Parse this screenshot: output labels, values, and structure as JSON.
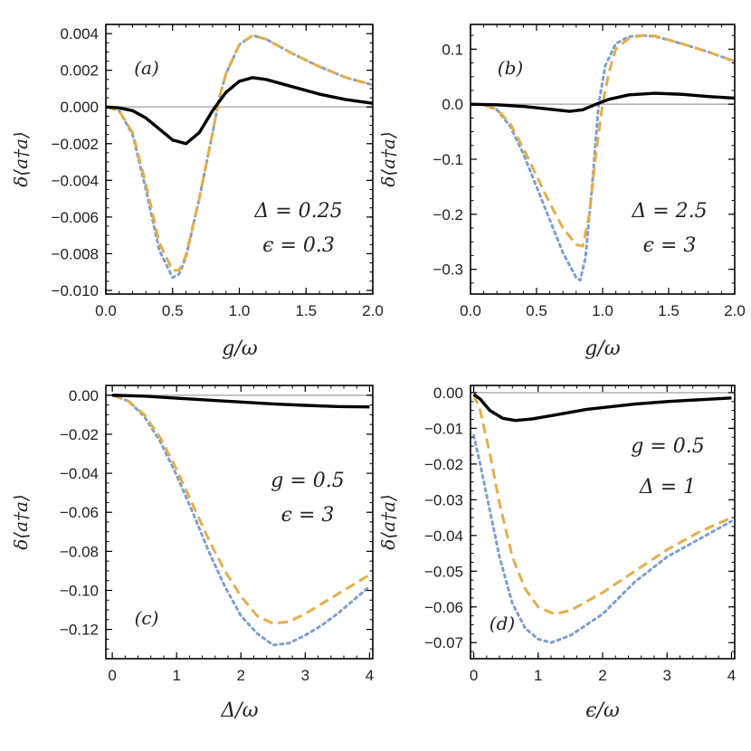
{
  "chart_data": [
    {
      "id": "a",
      "type": "line",
      "panel_label": "(a)",
      "xlabel": "g/ω",
      "ylabel": "δ⟨a†a⟩",
      "xlim": [
        0,
        2
      ],
      "ylim": [
        -0.0102,
        0.0045
      ],
      "xticks": [
        0,
        0.5,
        1,
        1.5,
        2
      ],
      "xticklabels": [
        "0.0",
        "0.5",
        "1.0",
        "1.5",
        "2.0"
      ],
      "yticks": [
        0.004,
        0.002,
        0,
        -0.002,
        -0.004,
        -0.006,
        -0.008,
        -0.01
      ],
      "yticklabels": [
        "0.004",
        "0.002",
        "0.000",
        "−0.002",
        "−0.004",
        "−0.006",
        "−0.008",
        "−0.010"
      ],
      "params": [
        "Δ = 0.25",
        "ϵ = 0.3"
      ],
      "params_pos": "middle-right",
      "reference_line": 0,
      "series": [
        {
          "style": "dotted",
          "color": "#7e9fce",
          "points": [
            [
              0,
              0
            ],
            [
              0.1,
              -0.0002
            ],
            [
              0.2,
              -0.0015
            ],
            [
              0.3,
              -0.0045
            ],
            [
              0.4,
              -0.0078
            ],
            [
              0.5,
              -0.0093
            ],
            [
              0.55,
              -0.0091
            ],
            [
              0.6,
              -0.0082
            ],
            [
              0.7,
              -0.005
            ],
            [
              0.8,
              -0.0014
            ],
            [
              0.85,
              0.0005
            ],
            [
              0.9,
              0.0018
            ],
            [
              1.0,
              0.0034
            ],
            [
              1.1,
              0.0039
            ],
            [
              1.2,
              0.0037
            ],
            [
              1.4,
              0.0029
            ],
            [
              1.6,
              0.0022
            ],
            [
              1.8,
              0.0016
            ],
            [
              2.0,
              0.0012
            ]
          ]
        },
        {
          "style": "dashed",
          "color": "#e2ae4c",
          "points": [
            [
              0,
              0
            ],
            [
              0.1,
              -0.0002
            ],
            [
              0.2,
              -0.0014
            ],
            [
              0.3,
              -0.0042
            ],
            [
              0.4,
              -0.0074
            ],
            [
              0.5,
              -0.0089
            ],
            [
              0.55,
              -0.0089
            ],
            [
              0.6,
              -0.0081
            ],
            [
              0.7,
              -0.005
            ],
            [
              0.8,
              -0.0014
            ],
            [
              0.85,
              0.0005
            ],
            [
              0.9,
              0.0018
            ],
            [
              1.0,
              0.0034
            ],
            [
              1.1,
              0.0039
            ],
            [
              1.2,
              0.0037
            ],
            [
              1.4,
              0.0029
            ],
            [
              1.6,
              0.0022
            ],
            [
              1.8,
              0.0016
            ],
            [
              2.0,
              0.0012
            ]
          ]
        },
        {
          "style": "solid",
          "color": "#000000",
          "points": [
            [
              0,
              0
            ],
            [
              0.1,
              -5e-05
            ],
            [
              0.2,
              -0.0002
            ],
            [
              0.3,
              -0.0006
            ],
            [
              0.4,
              -0.0012
            ],
            [
              0.5,
              -0.0018
            ],
            [
              0.6,
              -0.002
            ],
            [
              0.7,
              -0.0014
            ],
            [
              0.8,
              -0.0002
            ],
            [
              0.9,
              0.0008
            ],
            [
              1.0,
              0.0014
            ],
            [
              1.1,
              0.0016
            ],
            [
              1.2,
              0.0015
            ],
            [
              1.4,
              0.0011
            ],
            [
              1.6,
              0.0007
            ],
            [
              1.8,
              0.0004
            ],
            [
              2.0,
              0.0002
            ]
          ]
        }
      ]
    },
    {
      "id": "b",
      "type": "line",
      "panel_label": "(b)",
      "xlabel": "g/ω",
      "ylabel": "δ⟨a†a⟩",
      "xlim": [
        0,
        2
      ],
      "ylim": [
        -0.345,
        0.145
      ],
      "xticks": [
        0,
        0.5,
        1,
        1.5,
        2
      ],
      "xticklabels": [
        "0.0",
        "0.5",
        "1.0",
        "1.5",
        "2.0"
      ],
      "yticks": [
        0.1,
        0,
        -0.1,
        -0.2,
        -0.3
      ],
      "yticklabels": [
        "0.1",
        "0.0",
        "−0.1",
        "−0.2",
        "−0.3"
      ],
      "params": [
        "Δ = 2.5",
        "ϵ = 3"
      ],
      "params_pos": "middle-right",
      "reference_line": 0,
      "series": [
        {
          "style": "dotted",
          "color": "#7e9fce",
          "points": [
            [
              0,
              0
            ],
            [
              0.1,
              -0.001
            ],
            [
              0.2,
              -0.01
            ],
            [
              0.3,
              -0.04
            ],
            [
              0.4,
              -0.09
            ],
            [
              0.5,
              -0.15
            ],
            [
              0.6,
              -0.21
            ],
            [
              0.7,
              -0.27
            ],
            [
              0.8,
              -0.315
            ],
            [
              0.83,
              -0.32
            ],
            [
              0.87,
              -0.28
            ],
            [
              0.92,
              -0.15
            ],
            [
              0.97,
              0.0
            ],
            [
              1.02,
              0.07
            ],
            [
              1.1,
              0.11
            ],
            [
              1.2,
              0.123
            ],
            [
              1.3,
              0.125
            ],
            [
              1.4,
              0.123
            ],
            [
              1.6,
              0.11
            ],
            [
              1.8,
              0.095
            ],
            [
              2.0,
              0.078
            ]
          ]
        },
        {
          "style": "dashed",
          "color": "#e2ae4c",
          "points": [
            [
              0,
              0
            ],
            [
              0.1,
              -0.001
            ],
            [
              0.2,
              -0.009
            ],
            [
              0.3,
              -0.035
            ],
            [
              0.4,
              -0.08
            ],
            [
              0.5,
              -0.13
            ],
            [
              0.6,
              -0.18
            ],
            [
              0.7,
              -0.225
            ],
            [
              0.8,
              -0.255
            ],
            [
              0.85,
              -0.258
            ],
            [
              0.9,
              -0.2
            ],
            [
              0.95,
              -0.09
            ],
            [
              1.0,
              0.0
            ],
            [
              1.05,
              0.06
            ],
            [
              1.1,
              0.1
            ],
            [
              1.2,
              0.12
            ],
            [
              1.3,
              0.125
            ],
            [
              1.4,
              0.124
            ],
            [
              1.6,
              0.11
            ],
            [
              1.8,
              0.095
            ],
            [
              2.0,
              0.078
            ]
          ]
        },
        {
          "style": "solid",
          "color": "#000000",
          "points": [
            [
              0,
              0
            ],
            [
              0.2,
              -0.001
            ],
            [
              0.4,
              -0.004
            ],
            [
              0.6,
              -0.009
            ],
            [
              0.75,
              -0.013
            ],
            [
              0.85,
              -0.01
            ],
            [
              0.95,
              0.0
            ],
            [
              1.05,
              0.009
            ],
            [
              1.2,
              0.017
            ],
            [
              1.4,
              0.02
            ],
            [
              1.6,
              0.018
            ],
            [
              1.8,
              0.014
            ],
            [
              2.0,
              0.011
            ]
          ]
        }
      ]
    },
    {
      "id": "c",
      "type": "line",
      "panel_label": "(c)",
      "xlabel": "Δ/ω",
      "ylabel": "δ⟨a†a⟩",
      "xlim": [
        -0.1,
        4.05
      ],
      "ylim": [
        -0.135,
        0.005
      ],
      "xticks": [
        0,
        1,
        2,
        3,
        4
      ],
      "xticklabels": [
        "0",
        "1",
        "2",
        "3",
        "4"
      ],
      "yticks": [
        0,
        -0.02,
        -0.04,
        -0.06,
        -0.08,
        -0.1,
        -0.12
      ],
      "yticklabels": [
        "0.00",
        "−0.02",
        "−0.04",
        "−0.06",
        "−0.08",
        "−0.10",
        "−0.12"
      ],
      "params": [
        "g = 0.5",
        "ϵ = 3"
      ],
      "params_pos": "middle-right",
      "reference_line": 0,
      "series": [
        {
          "style": "dotted",
          "color": "#7e9fce",
          "points": [
            [
              0,
              0
            ],
            [
              0.25,
              -0.003
            ],
            [
              0.5,
              -0.011
            ],
            [
              0.75,
              -0.024
            ],
            [
              1.0,
              -0.041
            ],
            [
              1.25,
              -0.06
            ],
            [
              1.5,
              -0.08
            ],
            [
              1.75,
              -0.098
            ],
            [
              2.0,
              -0.113
            ],
            [
              2.25,
              -0.122
            ],
            [
              2.5,
              -0.128
            ],
            [
              2.75,
              -0.127
            ],
            [
              3.0,
              -0.123
            ],
            [
              3.25,
              -0.118
            ],
            [
              3.5,
              -0.112
            ],
            [
              3.75,
              -0.105
            ],
            [
              4.0,
              -0.098
            ]
          ]
        },
        {
          "style": "dashed",
          "color": "#e2ae4c",
          "points": [
            [
              0,
              0
            ],
            [
              0.25,
              -0.003
            ],
            [
              0.5,
              -0.01
            ],
            [
              0.75,
              -0.022
            ],
            [
              1.0,
              -0.038
            ],
            [
              1.25,
              -0.056
            ],
            [
              1.5,
              -0.074
            ],
            [
              1.75,
              -0.09
            ],
            [
              2.0,
              -0.103
            ],
            [
              2.25,
              -0.113
            ],
            [
              2.5,
              -0.117
            ],
            [
              2.75,
              -0.116
            ],
            [
              3.0,
              -0.112
            ],
            [
              3.25,
              -0.107
            ],
            [
              3.5,
              -0.102
            ],
            [
              3.75,
              -0.097
            ],
            [
              4.0,
              -0.092
            ]
          ]
        },
        {
          "style": "solid",
          "color": "#000000",
          "points": [
            [
              0,
              0
            ],
            [
              0.5,
              -0.0005
            ],
            [
              1.0,
              -0.0015
            ],
            [
              1.5,
              -0.0025
            ],
            [
              2.0,
              -0.0035
            ],
            [
              2.5,
              -0.0045
            ],
            [
              3.0,
              -0.0052
            ],
            [
              3.5,
              -0.0058
            ],
            [
              4.0,
              -0.006
            ]
          ]
        }
      ]
    },
    {
      "id": "d",
      "type": "line",
      "panel_label": "(d)",
      "xlabel": "ϵ/ω",
      "ylabel": "δ⟨a†a⟩",
      "xlim": [
        -0.05,
        4.05
      ],
      "ylim": [
        -0.0745,
        0.002
      ],
      "xticks": [
        0,
        1,
        2,
        3,
        4
      ],
      "xticklabels": [
        "0",
        "1",
        "2",
        "3",
        "4"
      ],
      "yticks": [
        0,
        -0.01,
        -0.02,
        -0.03,
        -0.04,
        -0.05,
        -0.06,
        -0.07
      ],
      "yticklabels": [
        "0.00",
        "−0.01",
        "−0.02",
        "−0.03",
        "−0.04",
        "−0.05",
        "−0.06",
        "−0.07"
      ],
      "params": [
        "g = 0.5",
        "Δ = 1"
      ],
      "params_pos": "upper-right",
      "reference_line": 0,
      "series": [
        {
          "style": "dotted",
          "color": "#7e9fce",
          "points": [
            [
              0,
              -0.012
            ],
            [
              0.1,
              -0.02
            ],
            [
              0.25,
              -0.033
            ],
            [
              0.4,
              -0.046
            ],
            [
              0.6,
              -0.059
            ],
            [
              0.8,
              -0.066
            ],
            [
              1.0,
              -0.069
            ],
            [
              1.2,
              -0.07
            ],
            [
              1.5,
              -0.068
            ],
            [
              2.0,
              -0.062
            ],
            [
              2.5,
              -0.053
            ],
            [
              3.0,
              -0.046
            ],
            [
              3.5,
              -0.041
            ],
            [
              4.0,
              -0.036
            ]
          ]
        },
        {
          "style": "dashed",
          "color": "#e2ae4c",
          "points": [
            [
              0,
              -0.0005
            ],
            [
              0.1,
              -0.005
            ],
            [
              0.25,
              -0.017
            ],
            [
              0.4,
              -0.031
            ],
            [
              0.6,
              -0.046
            ],
            [
              0.8,
              -0.055
            ],
            [
              1.0,
              -0.06
            ],
            [
              1.25,
              -0.062
            ],
            [
              1.5,
              -0.061
            ],
            [
              2.0,
              -0.056
            ],
            [
              2.5,
              -0.05
            ],
            [
              3.0,
              -0.044
            ],
            [
              3.5,
              -0.039
            ],
            [
              4.0,
              -0.035
            ]
          ]
        },
        {
          "style": "solid",
          "color": "#000000",
          "points": [
            [
              0,
              -0.0005
            ],
            [
              0.1,
              -0.0018
            ],
            [
              0.25,
              -0.005
            ],
            [
              0.45,
              -0.0072
            ],
            [
              0.65,
              -0.0078
            ],
            [
              0.9,
              -0.0074
            ],
            [
              1.25,
              -0.0063
            ],
            [
              1.75,
              -0.0047
            ],
            [
              2.5,
              -0.0032
            ],
            [
              3.0,
              -0.0025
            ],
            [
              3.5,
              -0.002
            ],
            [
              4.0,
              -0.0015
            ]
          ]
        }
      ]
    }
  ]
}
